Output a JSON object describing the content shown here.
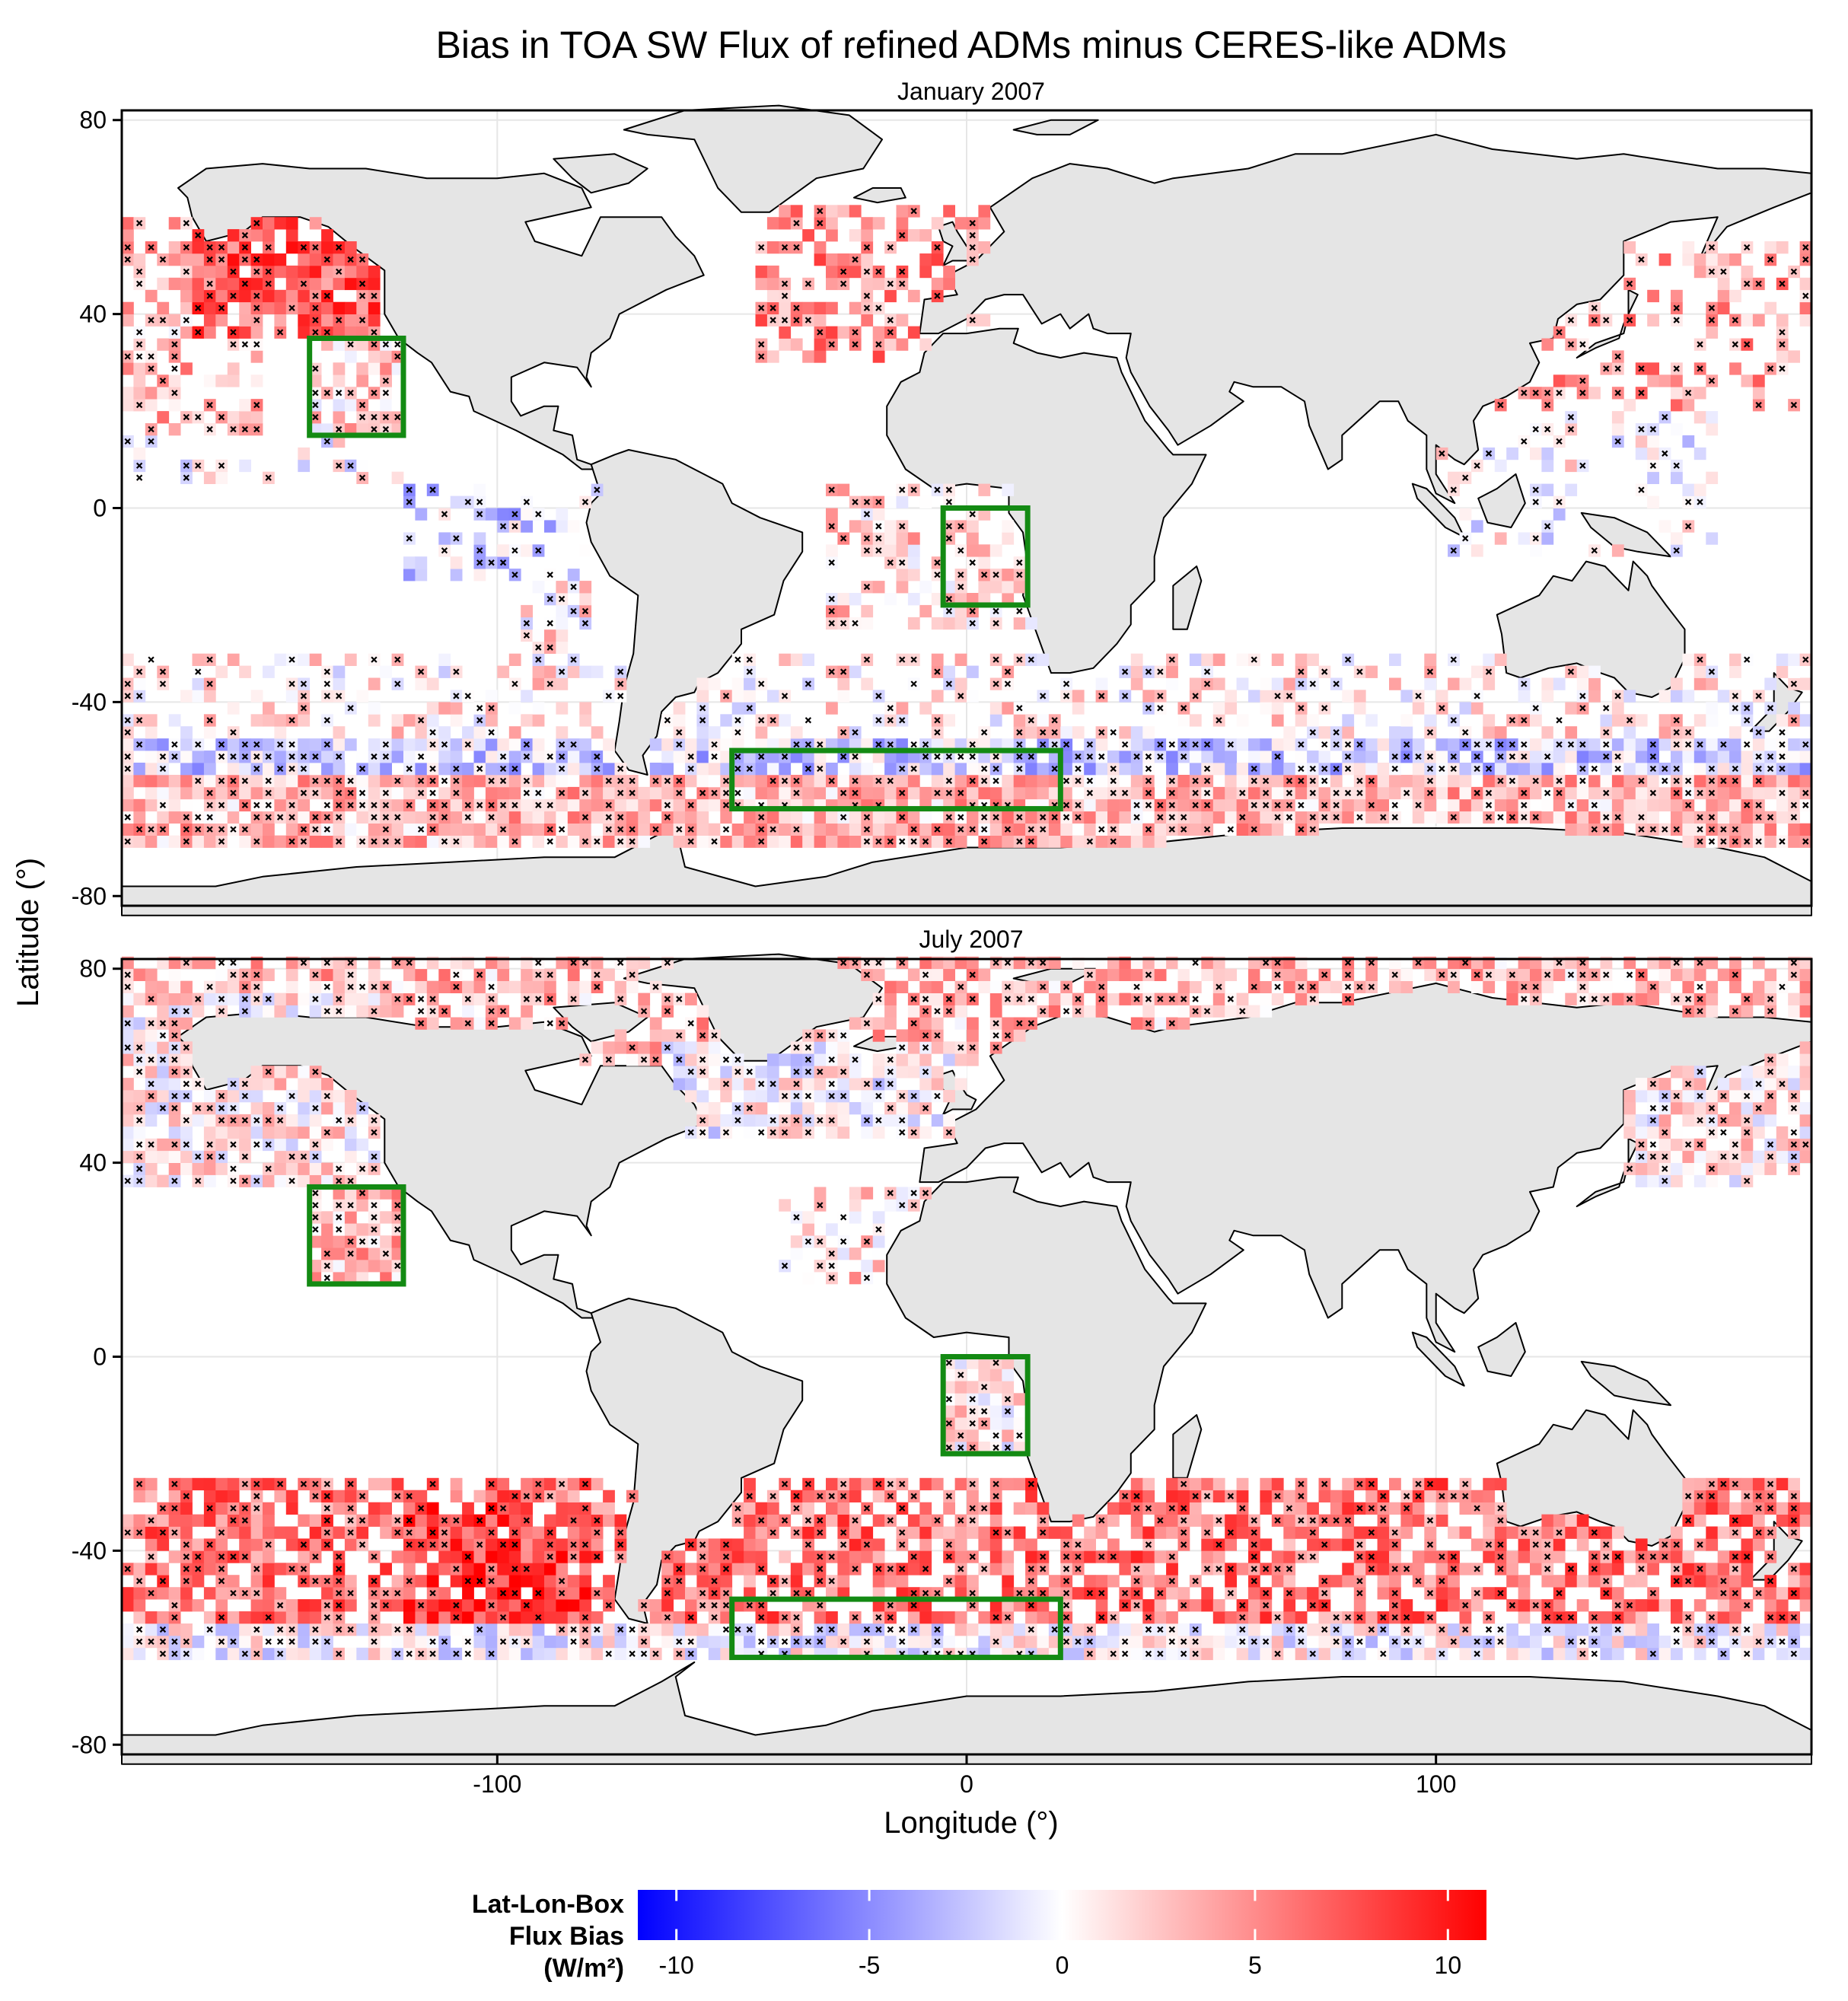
{
  "title": "Bias in TOA SW Flux of refined ADMs minus CERES-like ADMs",
  "xlabel": "Longitude (°)",
  "ylabel": "Latitude (°)",
  "colors": {
    "land": "#e5e5e5",
    "coast": "#000000",
    "box": "#138a13",
    "neg": "#0000ff",
    "mid": "#ffffff",
    "pos": "#ff0000",
    "cross": "#000000"
  },
  "chart_data": [
    {
      "type": "heatmap",
      "subtitle": "January 2007",
      "xlim": [
        -180,
        180
      ],
      "ylim": [
        -82,
        82
      ],
      "x_ticks": [
        -100,
        0,
        100
      ],
      "y_ticks": [
        80,
        40,
        0,
        -40,
        -80
      ],
      "grid": true,
      "regions": [
        {
          "lon": [
            -140,
            -120
          ],
          "lat": [
            15,
            35
          ]
        },
        {
          "lon": [
            -5,
            13
          ],
          "lat": [
            -20,
            0
          ]
        },
        {
          "lon": [
            -50,
            20
          ],
          "lat": [
            -62,
            -50
          ]
        }
      ],
      "bias_zones": [
        {
          "lon": [
            -180,
            -150
          ],
          "lat": [
            15,
            60
          ],
          "mean": 3,
          "fill": 0.5
        },
        {
          "lon": [
            -165,
            -125
          ],
          "lat": [
            35,
            60
          ],
          "mean": 7,
          "fill": 0.85
        },
        {
          "lon": [
            -140,
            -120
          ],
          "lat": [
            15,
            35
          ],
          "mean": 2,
          "fill": 0.75
        },
        {
          "lon": [
            -180,
            -120
          ],
          "lat": [
            5,
            15
          ],
          "mean": 0,
          "fill": 0.2
        },
        {
          "lon": [
            -95,
            -80
          ],
          "lat": [
            -40,
            5
          ],
          "mean": 1,
          "fill": 0.6
        },
        {
          "lon": [
            -120,
            -75
          ],
          "lat": [
            -15,
            5
          ],
          "mean": -2,
          "fill": 0.4
        },
        {
          "lon": [
            -45,
            5
          ],
          "lat": [
            30,
            62
          ],
          "mean": 5,
          "fill": 0.55
        },
        {
          "lon": [
            -30,
            20
          ],
          "lat": [
            -25,
            5
          ],
          "mean": 2,
          "fill": 0.5
        },
        {
          "lon": [
            -180,
            180
          ],
          "lat": [
            -48,
            -30
          ],
          "mean": 1,
          "fill": 0.45
        },
        {
          "lon": [
            -180,
            180
          ],
          "lat": [
            -55,
            -48
          ],
          "mean": -2,
          "fill": 0.9
        },
        {
          "lon": [
            -180,
            180
          ],
          "lat": [
            -70,
            -55
          ],
          "mean": 3,
          "fill": 0.95
        },
        {
          "lon": [
            110,
            180
          ],
          "lat": [
            20,
            55
          ],
          "mean": 4,
          "fill": 0.35
        },
        {
          "lon": [
            100,
            160
          ],
          "lat": [
            -10,
            20
          ],
          "mean": 0,
          "fill": 0.25
        }
      ]
    },
    {
      "type": "heatmap",
      "subtitle": "July 2007",
      "xlim": [
        -180,
        180
      ],
      "ylim": [
        -82,
        82
      ],
      "x_ticks": [
        -100,
        0,
        100
      ],
      "y_ticks": [
        80,
        40,
        0,
        -40,
        -80
      ],
      "grid": true,
      "regions": [
        {
          "lon": [
            -140,
            -120
          ],
          "lat": [
            15,
            35
          ]
        },
        {
          "lon": [
            -5,
            13
          ],
          "lat": [
            -20,
            0
          ]
        },
        {
          "lon": [
            -50,
            20
          ],
          "lat": [
            -62,
            -50
          ]
        }
      ],
      "bias_zones": [
        {
          "lon": [
            -180,
            180
          ],
          "lat": [
            60,
            82
          ],
          "mean": 3,
          "fill": 0.7
        },
        {
          "lon": [
            -180,
            -125
          ],
          "lat": [
            35,
            75
          ],
          "mean": 1,
          "fill": 0.9
        },
        {
          "lon": [
            -65,
            0
          ],
          "lat": [
            45,
            65
          ],
          "mean": 0,
          "fill": 0.8
        },
        {
          "lon": [
            140,
            180
          ],
          "lat": [
            35,
            60
          ],
          "mean": 1,
          "fill": 0.85
        },
        {
          "lon": [
            -140,
            -120
          ],
          "lat": [
            15,
            35
          ],
          "mean": 3,
          "fill": 0.9
        },
        {
          "lon": [
            -40,
            -5
          ],
          "lat": [
            15,
            35
          ],
          "mean": 2,
          "fill": 0.45
        },
        {
          "lon": [
            -5,
            13
          ],
          "lat": [
            -20,
            0
          ],
          "mean": 1,
          "fill": 0.85
        },
        {
          "lon": [
            -180,
            180
          ],
          "lat": [
            -55,
            -25
          ],
          "mean": 6,
          "fill": 0.7
        },
        {
          "lon": [
            -180,
            180
          ],
          "lat": [
            -62,
            -55
          ],
          "mean": 0,
          "fill": 0.9
        },
        {
          "lon": [
            -120,
            -80
          ],
          "lat": [
            -55,
            -30
          ],
          "mean": 8,
          "fill": 0.9
        }
      ]
    }
  ],
  "legend": {
    "title_lines": [
      "Lat-Lon-Box",
      "Flux Bias",
      "(W/m²)"
    ],
    "range": [
      -11,
      11
    ],
    "ticks": [
      -10,
      -5,
      0,
      5,
      10
    ]
  }
}
